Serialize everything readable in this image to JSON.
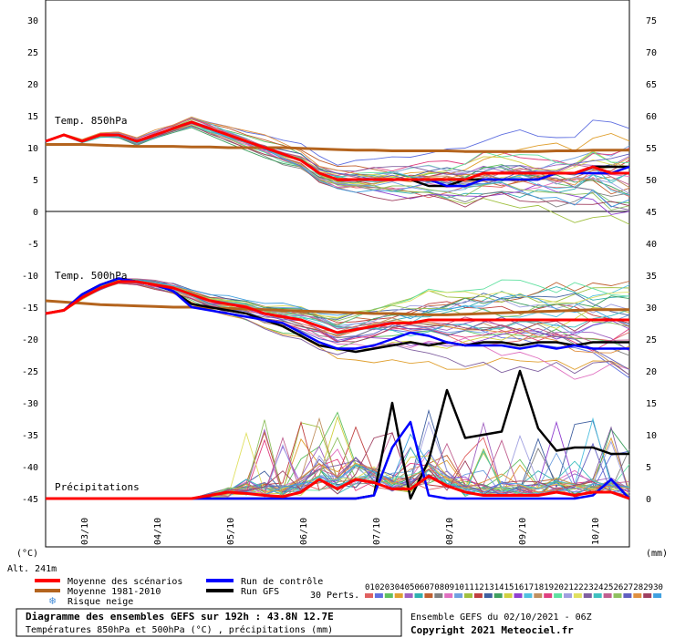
{
  "chart_data": {
    "type": "line",
    "title": "Diagramme des ensembles GEFS sur 192h : 43.8N 12.7E",
    "subtitle": "Températures 850hPa et 500hPa (°C) , précipitations (mm)",
    "run_info": "Ensemble GEFS du 02/10/2021 - 06Z",
    "copyright": "Copyright 2021 Meteociel.fr",
    "altitude": "Alt. 241m",
    "left_unit": "(°C)",
    "right_unit": "(mm)",
    "left_ticks": [
      "30",
      "25",
      "20",
      "15",
      "10",
      "5",
      "0",
      "-5",
      "-10",
      "-15",
      "-20",
      "-25",
      "-30",
      "-35",
      "-40",
      "-45"
    ],
    "right_ticks": [
      "75",
      "70",
      "65",
      "60",
      "55",
      "50",
      "45",
      "40",
      "35",
      "30",
      "25",
      "20",
      "15",
      "10",
      "5",
      "0"
    ],
    "x_ticks": [
      "03/10",
      "04/10",
      "05/10",
      "06/10",
      "07/10",
      "08/10",
      "09/10",
      "10/10"
    ],
    "panel_labels": {
      "t850": "Temp. 850hPa",
      "t500": "Temp. 500hPa",
      "precip": "Précipitations"
    },
    "legend": [
      {
        "label": "Moyenne des scénarios",
        "color": "#ff0000"
      },
      {
        "label": "Moyenne 1981-2010",
        "color": "#b4641e"
      },
      {
        "label": "Risque neige",
        "color": "#4a90d9"
      },
      {
        "label": "Run de contrôle",
        "color": "#0000ff"
      },
      {
        "label": "Run GFS",
        "color": "#000000"
      }
    ],
    "perts_label": "30 Perts.",
    "pert_numbers": [
      "01",
      "02",
      "03",
      "04",
      "05",
      "06",
      "07",
      "08",
      "09",
      "10",
      "11",
      "12",
      "13",
      "14",
      "15",
      "16",
      "17",
      "18",
      "19",
      "20",
      "21",
      "22",
      "23",
      "24",
      "25",
      "26",
      "27",
      "28",
      "29",
      "30"
    ],
    "pert_colors": [
      "#e06060",
      "#6070e0",
      "#60c060",
      "#e0a030",
      "#a060c0",
      "#30b0b0",
      "#c06030",
      "#808080",
      "#e070c0",
      "#70a0e0",
      "#a0c040",
      "#c04040",
      "#4060a0",
      "#40a060",
      "#d0d040",
      "#9040d0",
      "#50c0e0",
      "#c09060",
      "#e04080",
      "#60e0a0",
      "#a0a0e0",
      "#e0e060",
      "#8060a0",
      "#40c0c0",
      "#c06090",
      "#90c060",
      "#6060c0",
      "#e09040",
      "#a04060",
      "#40a0e0"
    ],
    "x": [
      0,
      6,
      12,
      18,
      24,
      30,
      36,
      42,
      48,
      54,
      60,
      66,
      72,
      78,
      84,
      90,
      96,
      102,
      108,
      114,
      120,
      126,
      132,
      138,
      144,
      150,
      156,
      162,
      168,
      174,
      180,
      186,
      192
    ],
    "series": [
      {
        "name": "Moyenne des scénarios",
        "panel": "t850",
        "values": [
          11,
          12,
          11,
          12,
          12,
          11,
          12,
          13,
          14,
          13,
          12,
          11,
          10,
          9,
          8,
          6,
          5,
          5,
          5,
          5,
          5,
          5,
          5,
          5,
          6,
          6,
          6,
          6,
          6,
          6,
          7,
          6,
          6
        ]
      },
      {
        "name": "Moyenne 1981-2010",
        "panel": "t850",
        "values": [
          10.5,
          10.5,
          10.5,
          10.4,
          10.3,
          10.2,
          10.2,
          10.2,
          10.1,
          10.1,
          10,
          10,
          10,
          10,
          9.9,
          9.8,
          9.7,
          9.6,
          9.6,
          9.5,
          9.5,
          9.5,
          9.5,
          9.4,
          9.4,
          9.4,
          9.4,
          9.4,
          9.5,
          9.5,
          9.6,
          9.6,
          9.6
        ]
      },
      {
        "name": "Run de contrôle",
        "panel": "t850",
        "values": [
          11,
          12,
          11,
          12,
          12,
          11,
          12,
          13,
          14,
          13,
          12,
          11,
          10,
          9,
          8,
          6,
          5,
          5,
          5,
          5,
          5,
          5,
          4,
          4,
          5,
          5,
          5,
          5,
          6,
          6,
          6,
          6,
          7
        ]
      },
      {
        "name": "Run GFS",
        "panel": "t850",
        "values": [
          11,
          12,
          11,
          12,
          12,
          11,
          12,
          13,
          14,
          13,
          12,
          11,
          10,
          9,
          8,
          6,
          5,
          5,
          5,
          5,
          5,
          4,
          4,
          5,
          5,
          5,
          5,
          5,
          6,
          6,
          7,
          7,
          7
        ]
      },
      {
        "name": "Moyenne des scénarios",
        "panel": "t500",
        "values": [
          -16,
          -15.5,
          -13.5,
          -12,
          -11,
          -11,
          -11.5,
          -12,
          -13,
          -14,
          -14.5,
          -15,
          -16,
          -16.5,
          -17,
          -18,
          -19,
          -18.5,
          -18,
          -17.5,
          -17.5,
          -17,
          -17,
          -17,
          -17,
          -17,
          -17,
          -17,
          -17,
          -17,
          -17,
          -17,
          -17
        ]
      },
      {
        "name": "Moyenne 1981-2010",
        "panel": "t500",
        "values": [
          -14,
          -14.2,
          -14.4,
          -14.6,
          -14.7,
          -14.8,
          -14.9,
          -15,
          -15,
          -15.1,
          -15.2,
          -15.3,
          -15.4,
          -15.5,
          -15.6,
          -15.7,
          -15.8,
          -15.9,
          -16,
          -16,
          -16.1,
          -16.2,
          -16.2,
          -16.1,
          -16,
          -15.9,
          -15.8,
          -15.7,
          -15.6,
          -15.5,
          -15.4,
          -15.4,
          -15.4
        ]
      },
      {
        "name": "Run de contrôle",
        "panel": "t500",
        "values": [
          -16,
          -15.5,
          -13,
          -11.5,
          -10.5,
          -11,
          -11.5,
          -12.5,
          -15,
          -15.5,
          -16,
          -16.5,
          -17,
          -17.5,
          -19,
          -20.5,
          -21.5,
          -21.5,
          -21,
          -20,
          -19,
          -19.5,
          -20.5,
          -21,
          -21,
          -21,
          -21.5,
          -21,
          -21.5,
          -21,
          -21.5,
          -21.5,
          -21.5
        ]
      },
      {
        "name": "Run GFS",
        "panel": "t500",
        "values": [
          -16,
          -15.5,
          -13,
          -11.5,
          -10.5,
          -11,
          -11.5,
          -12.5,
          -14.5,
          -15,
          -15.5,
          -16,
          -17,
          -18,
          -19.5,
          -21,
          -21.5,
          -22,
          -21.5,
          -21,
          -20.5,
          -21,
          -20.5,
          -21,
          -20.5,
          -20.5,
          -21,
          -20.5,
          -20.5,
          -21,
          -20.5,
          -20.5,
          -20.5
        ]
      },
      {
        "name": "Moyenne des scénarios",
        "panel": "precip",
        "values": [
          0,
          0,
          0,
          0,
          0,
          0,
          0,
          0,
          0,
          0.5,
          1,
          0.8,
          0.5,
          0.3,
          1,
          3,
          1.5,
          3,
          2.5,
          1.5,
          1.5,
          3.5,
          2,
          1,
          0.5,
          0.5,
          0.5,
          0.5,
          1,
          0.5,
          1,
          1,
          0
        ]
      },
      {
        "name": "Run de contrôle",
        "panel": "precip",
        "values": [
          0,
          0,
          0,
          0,
          0,
          0,
          0,
          0,
          0,
          0,
          0,
          0,
          0,
          0,
          0,
          0,
          0,
          0,
          0.5,
          8,
          12,
          0.5,
          0,
          0,
          0,
          0,
          0,
          0,
          0,
          0,
          0.5,
          3,
          0
        ]
      },
      {
        "name": "Run GFS",
        "panel": "precip",
        "values": [
          0,
          0,
          0,
          0,
          0,
          0,
          0,
          0,
          0,
          0,
          0,
          0,
          0,
          0,
          0,
          0,
          0,
          0,
          0.5,
          15,
          0,
          6,
          17,
          9.5,
          10,
          10.5,
          20,
          11,
          7.5,
          8,
          8,
          7,
          7
        ]
      }
    ]
  }
}
